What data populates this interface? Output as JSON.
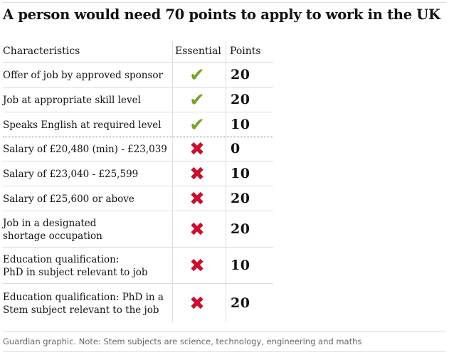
{
  "title": "A person would need 70 points to apply to work in the UK",
  "headers": {
    "characteristics": "Characteristics",
    "essential": "Essential",
    "points": "Points"
  },
  "rows": [
    {
      "label_lines": [
        "Offer of job by approved sponsor"
      ],
      "essential": "check-icon",
      "points": "20"
    },
    {
      "label_lines": [
        "Job at appropriate skill level"
      ],
      "essential": "check-icon",
      "points": "20"
    },
    {
      "label_lines": [
        "Speaks English at required level"
      ],
      "essential": "check-icon",
      "points": "10"
    },
    {
      "label_lines": [
        "Salary of £20,480 (min) - £23,039"
      ],
      "essential": "cross-icon",
      "points": "0"
    },
    {
      "label_lines": [
        "Salary of £23,040 - £25,599"
      ],
      "essential": "cross-icon",
      "points": "10"
    },
    {
      "label_lines": [
        "Salary of £25,600 or above"
      ],
      "essential": "cross-icon",
      "points": "20"
    },
    {
      "label_lines": [
        "Job in a designated",
        "shortage occupation"
      ],
      "essential": "cross-icon",
      "points": "20"
    },
    {
      "label_lines": [
        "Education qualification:",
        "PhD in subject relevant to job"
      ],
      "essential": "cross-icon",
      "points": "10"
    },
    {
      "label_lines": [
        "Education qualification: PhD in a",
        "Stem subject relevant to the job"
      ],
      "essential": "cross-icon",
      "points": "20"
    }
  ],
  "colors": {
    "check": "#7aa12c",
    "cross": "#c8102e"
  },
  "footer": "Guardian graphic. Note: Stem subjects are science, technology, engineering and maths"
}
